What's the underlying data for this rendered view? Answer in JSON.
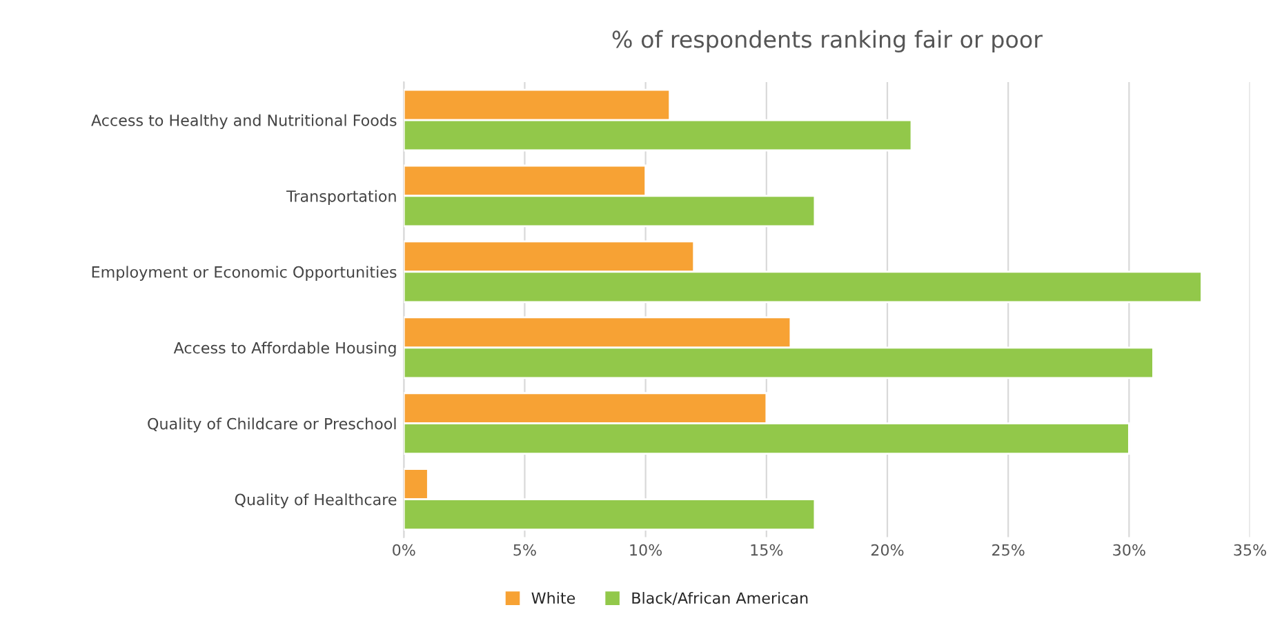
{
  "chart_data": {
    "type": "bar",
    "orientation": "horizontal",
    "title": "% of respondents ranking fair or poor",
    "categories": [
      "Access to Healthy and Nutritional Foods",
      "Transportation",
      "Employment or Economic Opportunities",
      "Access to Affordable Housing",
      "Quality of Childcare or Preschool",
      "Quality of Healthcare"
    ],
    "series": [
      {
        "name": "White",
        "color": "#f7a234",
        "values": [
          11,
          10,
          12,
          16,
          15,
          1
        ]
      },
      {
        "name": "Black/African American",
        "color": "#92c84a",
        "values": [
          21,
          17,
          33,
          31,
          30,
          17
        ]
      }
    ],
    "xlim": [
      0,
      35
    ],
    "xticks": [
      {
        "value": 0,
        "label": "0%"
      },
      {
        "value": 5,
        "label": "5%"
      },
      {
        "value": 10,
        "label": "10%"
      },
      {
        "value": 15,
        "label": "15%"
      },
      {
        "value": 20,
        "label": "20%"
      },
      {
        "value": 25,
        "label": "25%"
      },
      {
        "value": 30,
        "label": "30%"
      },
      {
        "value": 35,
        "label": "35%"
      }
    ],
    "grid": "x",
    "legend": "bottom"
  }
}
